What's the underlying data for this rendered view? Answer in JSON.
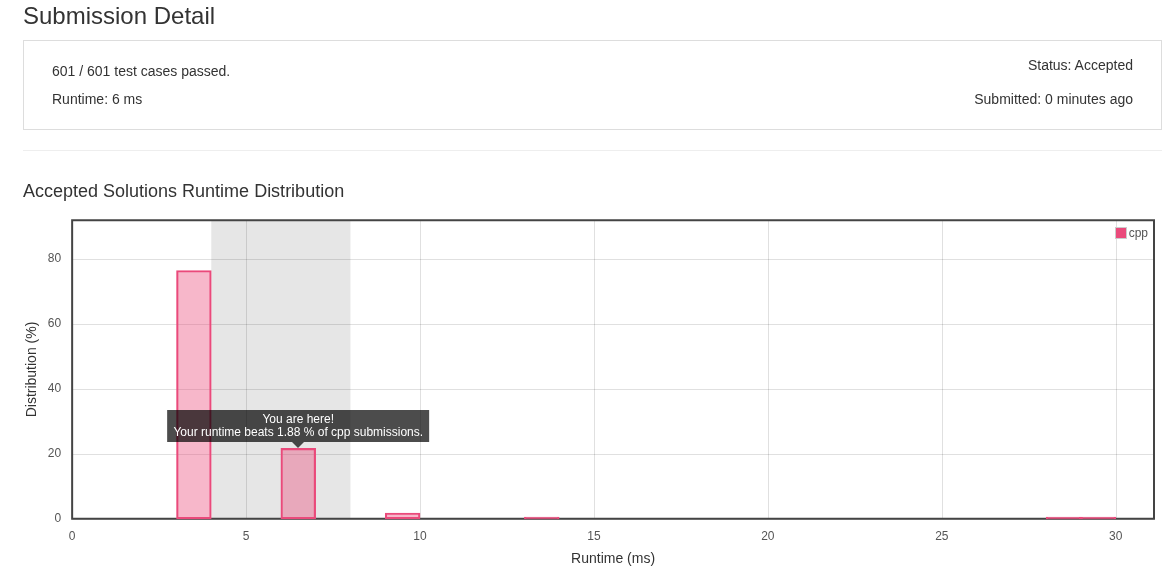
{
  "chart_data": [
    {
      "type": "other",
      "title": "Submission Detail",
      "annotations": [
        "601 / 601 test cases passed.",
        "Runtime: 6 ms",
        "Status: Accepted",
        "Submitted: 0 minutes ago"
      ]
    },
    {
      "type": "bar",
      "title": "Accepted Solutions Runtime Distribution",
      "xlabel": "Runtime (ms)",
      "ylabel": "Distribution (%)",
      "x": [
        3.5,
        6.5,
        9.5,
        13.5,
        28.5,
        29.5
      ],
      "series": [
        {
          "name": "cpp",
          "color": "#ea4a7b",
          "values": [
            76.5,
            21.7,
            1.8,
            0.5,
            0.5,
            0.5
          ]
        }
      ],
      "xlim": [
        0,
        31.1
      ],
      "xticks": [
        0,
        5,
        10,
        15,
        20,
        25,
        30
      ],
      "ylim": [
        0,
        92
      ],
      "yticks": [
        0,
        20,
        40,
        60,
        80
      ],
      "bands": [
        {
          "axis": "x",
          "from": 4,
          "to": 8,
          "color": "#e6e6e6"
        }
      ],
      "annotations": [
        {
          "text": "You are here!\nYour runtime beats 1.88 % of cpp submissions.",
          "x": 6.5,
          "y": 21.7
        }
      ],
      "grid": true,
      "legend": "top right"
    }
  ]
}
